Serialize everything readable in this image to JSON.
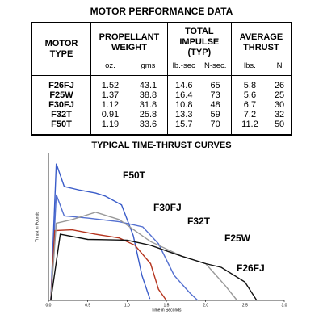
{
  "header": {
    "title": "MOTOR PERFORMANCE DATA"
  },
  "table": {
    "columns": [
      "MOTOR TYPE",
      "PROPELLANT WEIGHT",
      "TOTAL IMPULSE (TYP)",
      "AVERAGE THRUST"
    ],
    "units": [
      "oz.",
      "gms",
      "lb.-sec",
      "N-sec.",
      "lbs.",
      "N"
    ],
    "rows": [
      [
        "F26FJ",
        "1.52",
        "43.1",
        "14.6",
        "65",
        "5.8",
        "26"
      ],
      [
        "F25W",
        "1.37",
        "38.8",
        "16.4",
        "73",
        "5.6",
        "25"
      ],
      [
        "F30FJ",
        "1.12",
        "31.8",
        "10.8",
        "48",
        "6.7",
        "30"
      ],
      [
        "F32T",
        "0.91",
        "25.8",
        "13.3",
        "59",
        "7.2",
        "32"
      ],
      [
        "F50T",
        "1.19",
        "33.6",
        "15.7",
        "70",
        "11.2",
        "50"
      ]
    ]
  },
  "chart_data": {
    "type": "line",
    "title": "TYPICAL TIME-THRUST CURVES",
    "x_label": "Time in Seconds",
    "y_label": "Thrust in Pounds",
    "xlim": [
      0,
      3
    ],
    "xticks": [
      {
        "value": 0,
        "label": "0.0"
      },
      {
        "value": 0.5,
        "label": "0.5"
      },
      {
        "value": 1,
        "label": "1.0"
      },
      {
        "value": 1.5,
        "label": "1.5"
      },
      {
        "value": 2,
        "label": "2.0"
      },
      {
        "value": 2.5,
        "label": "2.5"
      },
      {
        "value": 3,
        "label": "3.0"
      }
    ],
    "ylim": [
      0,
      20
    ],
    "series": [
      {
        "name": "F50T",
        "color": "#3a5cc9",
        "x": [
          0.03,
          0.1,
          0.2,
          0.4,
          0.6,
          0.72,
          0.93,
          1.08,
          1.19,
          1.29
        ],
        "values": [
          0,
          18.6,
          15.5,
          15.0,
          14.6,
          14.2,
          13.0,
          8.8,
          3.4,
          0.2
        ]
      },
      {
        "name": "F30FJ",
        "color": "#5470d0",
        "x": [
          0.03,
          0.1,
          0.2,
          0.5,
          0.9,
          1.2,
          1.4,
          1.6,
          1.8,
          1.9
        ],
        "values": [
          0,
          14.4,
          11.5,
          11.2,
          10.7,
          10.0,
          7.7,
          3.4,
          1.0,
          0
        ]
      },
      {
        "name": "F32T",
        "color": "#b5341e",
        "x": [
          0.03,
          0.08,
          0.3,
          0.6,
          0.9,
          1.1,
          1.3,
          1.4,
          1.5
        ],
        "values": [
          0,
          9.5,
          9.6,
          9.0,
          8.5,
          7.5,
          5.0,
          1.5,
          0
        ]
      },
      {
        "name": "F25W",
        "color": "#999999",
        "x": [
          0.03,
          0.1,
          0.3,
          0.6,
          0.9,
          1.3,
          1.7,
          2.0,
          2.25,
          2.4
        ],
        "values": [
          0,
          10.5,
          11.0,
          12.0,
          11.0,
          8.0,
          6.0,
          5.0,
          2.0,
          0
        ]
      },
      {
        "name": "F26FJ",
        "color": "#111111",
        "x": [
          0.03,
          0.15,
          0.5,
          1.0,
          1.3,
          1.7,
          2.0,
          2.2,
          2.5,
          2.65
        ],
        "values": [
          0,
          9.0,
          8.3,
          8.2,
          7.5,
          6.0,
          5.0,
          4.5,
          2.5,
          0
        ]
      }
    ]
  }
}
